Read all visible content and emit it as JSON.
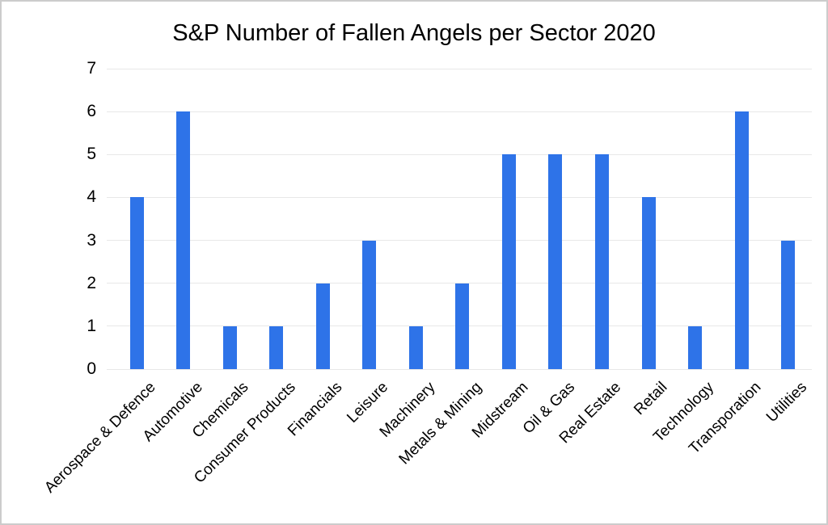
{
  "chart_data": {
    "type": "bar",
    "title": "S&P Number of Fallen Angels per Sector 2020",
    "categories": [
      "Aerospace & Defence",
      "Automotive",
      "Chemicals",
      "Consumer Products",
      "Financials",
      "Leisure",
      "Machinery",
      "Metals & Mining",
      "Midstream",
      "Oil & Gas",
      "Real Estate",
      "Retail",
      "Technology",
      "Transporation",
      "Utilities"
    ],
    "values": [
      4,
      6,
      1,
      1,
      2,
      3,
      1,
      2,
      5,
      5,
      5,
      4,
      1,
      6,
      3
    ],
    "xlabel": "",
    "ylabel": "",
    "ylim": [
      0,
      7
    ],
    "yticks": [
      0,
      1,
      2,
      3,
      4,
      5,
      6,
      7
    ],
    "grid": true,
    "legend_position": "none"
  },
  "colors": {
    "bar": "#2e73e8",
    "gridline": "#e8e8e8",
    "title_text": "#000000",
    "axis_text": "#000000",
    "frame_border": "#cccccc",
    "background": "#ffffff"
  }
}
